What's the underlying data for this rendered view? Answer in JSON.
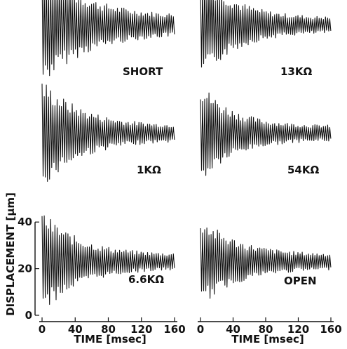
{
  "chart_data": {
    "type": "line",
    "ylabel": "DISPLACEMENT [μm]",
    "xlabel": "TIME [msec]",
    "xlim": [
      0,
      160
    ],
    "ylim": [
      0,
      40
    ],
    "xticks": [
      "0",
      "40",
      "80",
      "120",
      "160"
    ],
    "yticks": [
      "0",
      "20",
      "40"
    ],
    "grid": false,
    "panels": [
      {
        "label": "SHORT",
        "offset": 23,
        "initial_amplitude": 21,
        "decay_ms": 55,
        "floor_amplitude": 3
      },
      {
        "label": "13KΩ",
        "offset": 23,
        "initial_amplitude": 20,
        "decay_ms": 42,
        "floor_amplitude": 2.5
      },
      {
        "label": "1KΩ",
        "offset": 23,
        "initial_amplitude": 19,
        "decay_ms": 48,
        "floor_amplitude": 2.5
      },
      {
        "label": "54KΩ",
        "offset": 23,
        "initial_amplitude": 18,
        "decay_ms": 40,
        "floor_amplitude": 2.5
      },
      {
        "label": "6.6KΩ",
        "offset": 23,
        "initial_amplitude": 18,
        "decay_ms": 45,
        "floor_amplitude": 2.5
      },
      {
        "label": "OPEN",
        "offset": 23,
        "initial_amplitude": 16,
        "decay_ms": 45,
        "floor_amplitude": 2.5
      }
    ],
    "oscillation_period_ms": 2.6
  }
}
